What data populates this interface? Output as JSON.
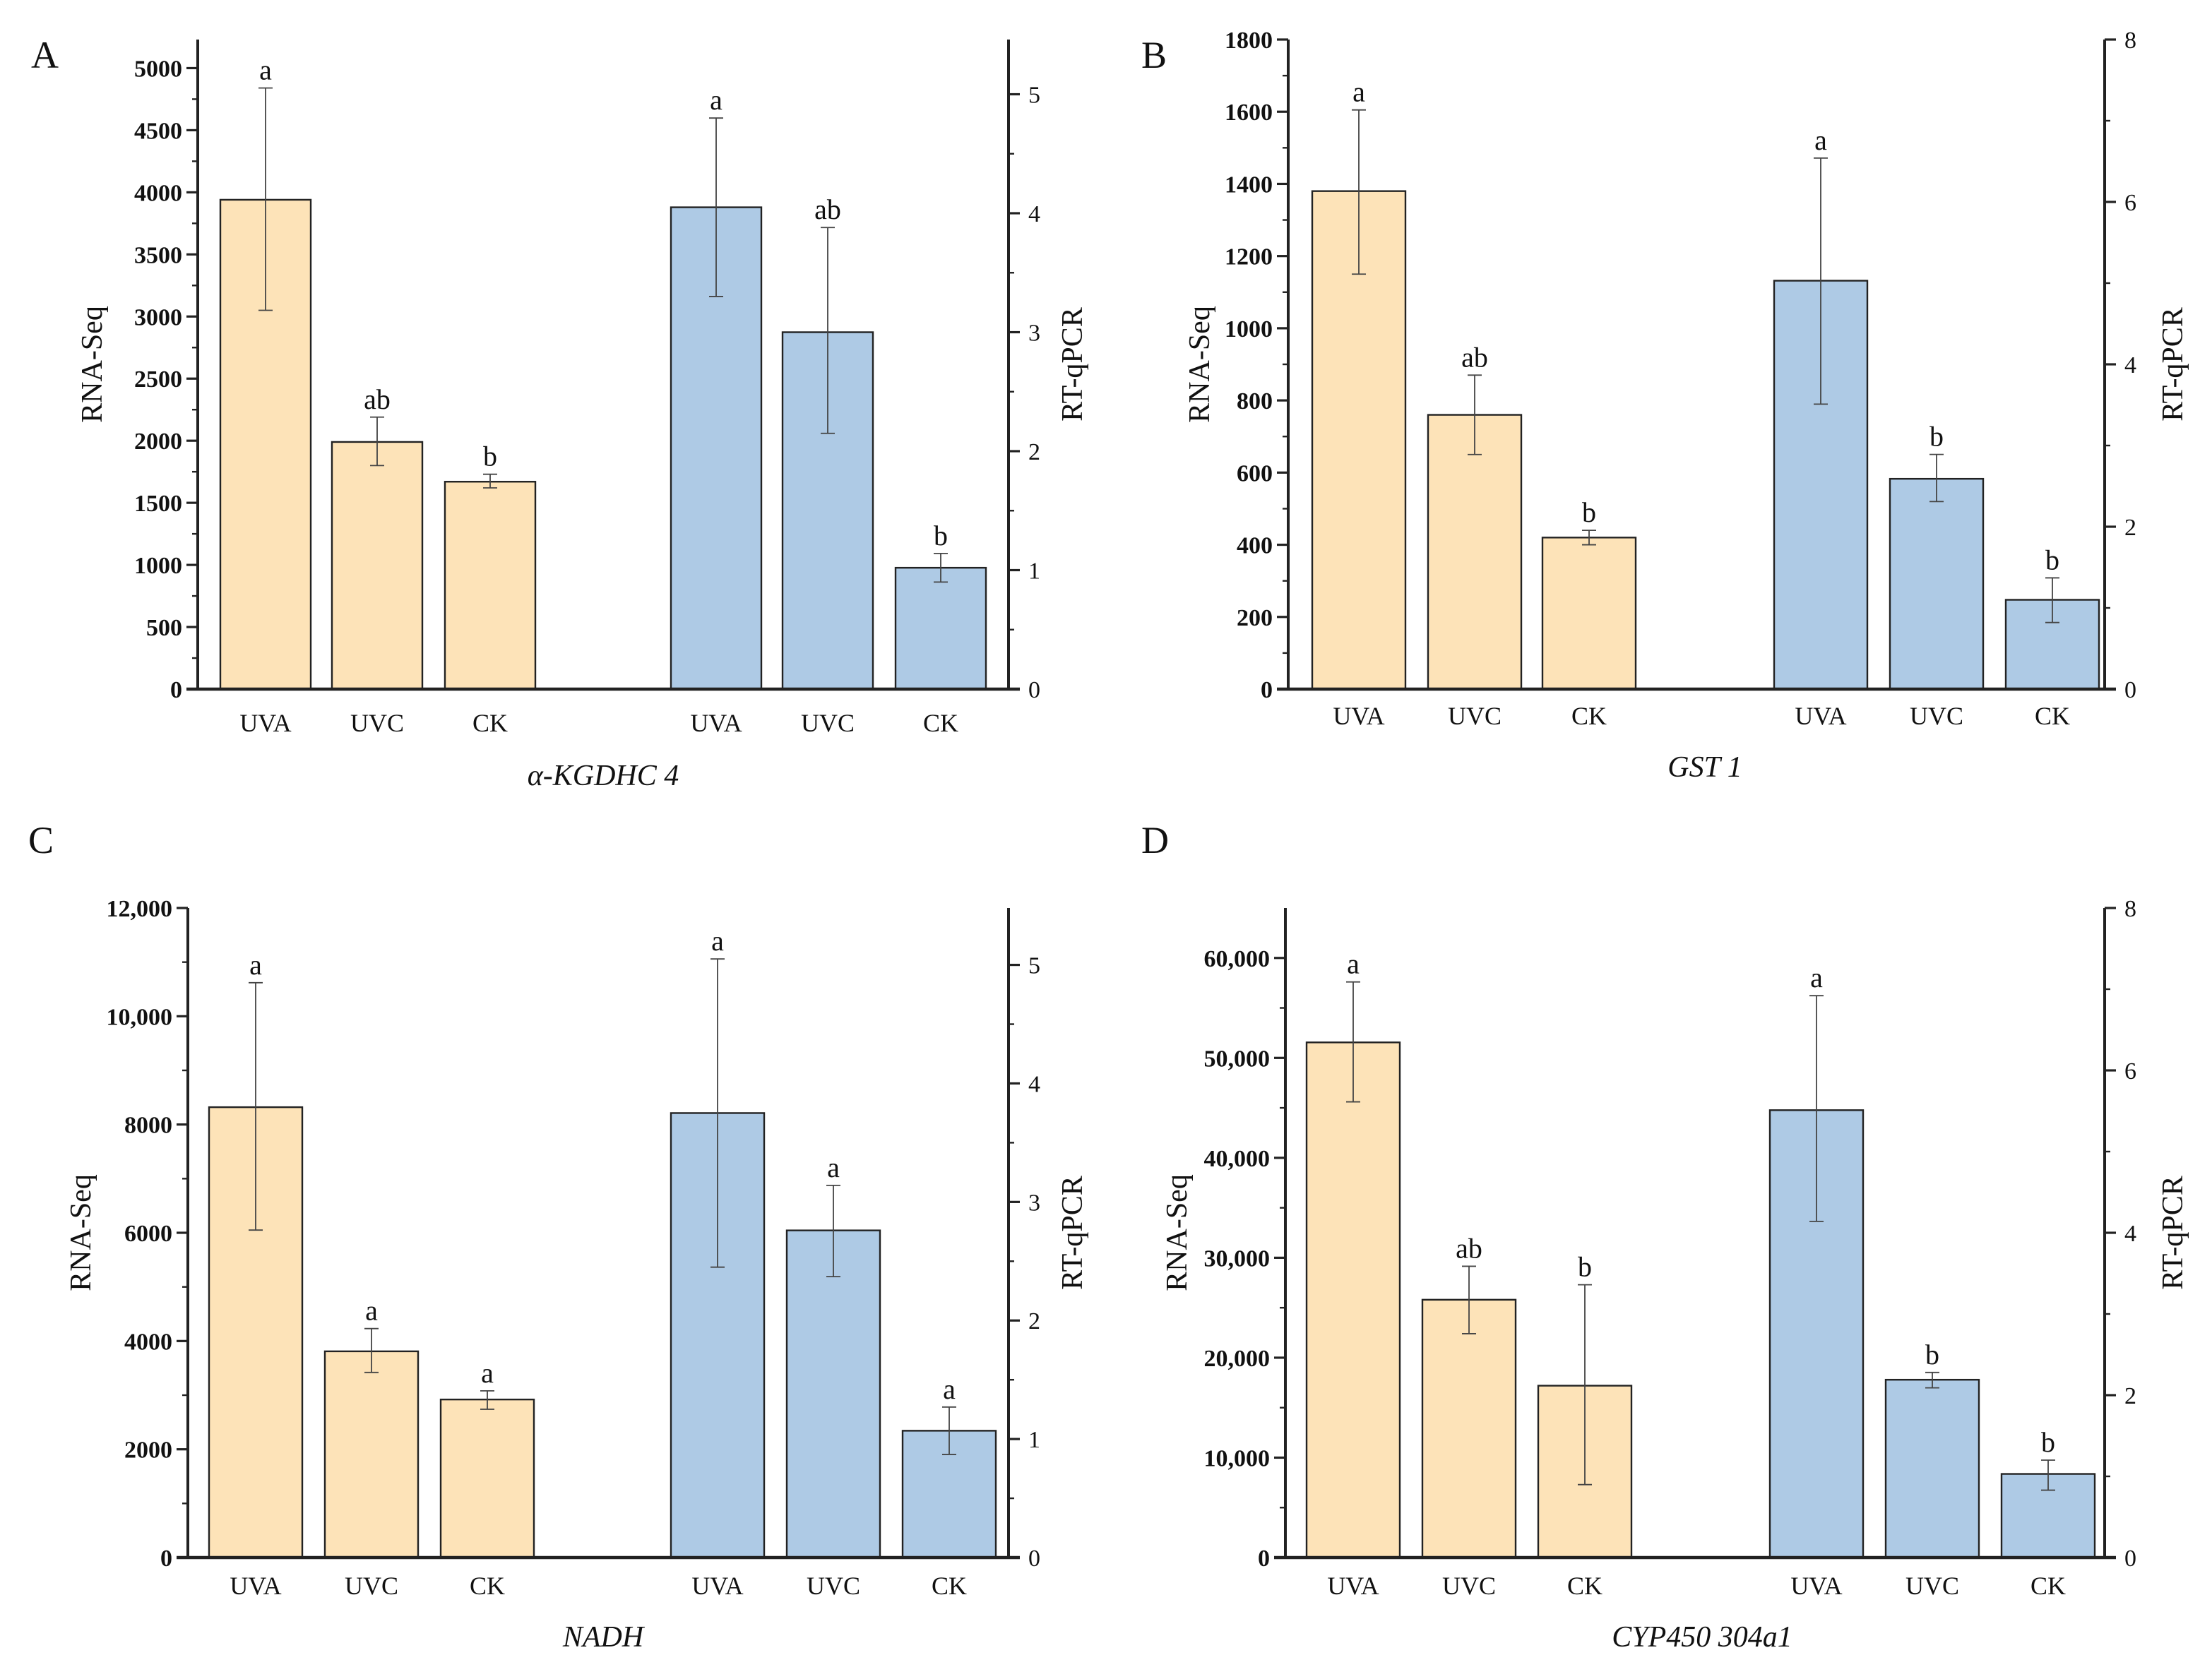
{
  "colors": {
    "rna_seq": "#fde3b8",
    "rt_qpcr": "#aecae5",
    "stroke": "#222222"
  },
  "chart_data": [
    {
      "type": "bar",
      "panel": "A",
      "gene": "α-KGDHC 4",
      "categories": [
        "UVA",
        "UVC",
        "CK"
      ],
      "ylabel_left": "RNA-Seq",
      "ylabel_right": "RT-qPCR",
      "ylim_left": [
        0,
        5230
      ],
      "ylim_right": [
        0,
        5.46
      ],
      "left_ticks": [
        0,
        500,
        1000,
        1500,
        2000,
        2500,
        3000,
        3500,
        4000,
        4500,
        5000
      ],
      "left_tick_labels": [
        "0",
        "500",
        "1000",
        "1500",
        "2000",
        "2500",
        "3000",
        "3500",
        "4000",
        "4500",
        "5000"
      ],
      "right_ticks": [
        0,
        1,
        2,
        3,
        4,
        5
      ],
      "right_tick_labels": [
        "0",
        "1",
        "2",
        "3",
        "4",
        "5"
      ],
      "series": [
        {
          "name": "RNA-Seq",
          "axis": "left",
          "values": [
            3940,
            1990,
            1670
          ],
          "err_low": [
            3050,
            1800,
            1620
          ],
          "err_high": [
            4840,
            2190,
            1730
          ],
          "letters": [
            "a",
            "ab",
            "b"
          ]
        },
        {
          "name": "RT-qPCR",
          "axis": "right",
          "values": [
            4.05,
            3.0,
            1.02
          ],
          "err_low": [
            3.3,
            2.15,
            0.9
          ],
          "err_high": [
            4.8,
            3.88,
            1.14
          ],
          "letters": [
            "a",
            "ab",
            "b"
          ]
        }
      ]
    },
    {
      "type": "bar",
      "panel": "B",
      "gene": "GST 1",
      "categories": [
        "UVA",
        "UVC",
        "CK"
      ],
      "ylabel_left": "RNA-Seq",
      "ylabel_right": "RT-qPCR",
      "ylim_left": [
        0,
        1800
      ],
      "ylim_right": [
        0,
        8
      ],
      "left_ticks": [
        0,
        200,
        400,
        600,
        800,
        1000,
        1200,
        1400,
        1600,
        1800
      ],
      "left_tick_labels": [
        "0",
        "200",
        "400",
        "600",
        "800",
        "1000",
        "1200",
        "1400",
        "1600",
        "1800"
      ],
      "right_ticks": [
        0,
        2,
        4,
        6,
        8
      ],
      "right_tick_labels": [
        "0",
        "2",
        "4",
        "6",
        "8"
      ],
      "series": [
        {
          "name": "RNA-Seq",
          "axis": "left",
          "values": [
            1380,
            760,
            420
          ],
          "err_low": [
            1150,
            650,
            400
          ],
          "err_high": [
            1605,
            870,
            440
          ],
          "letters": [
            "a",
            "ab",
            "b"
          ]
        },
        {
          "name": "RT-qPCR",
          "axis": "right",
          "values": [
            5.03,
            2.59,
            1.1
          ],
          "err_low": [
            3.51,
            2.31,
            0.82
          ],
          "err_high": [
            6.54,
            2.89,
            1.37
          ],
          "letters": [
            "a",
            "b",
            "b"
          ]
        }
      ]
    },
    {
      "type": "bar",
      "panel": "C",
      "gene": "NADH",
      "categories": [
        "UVA",
        "UVC",
        "CK"
      ],
      "ylabel_left": "RNA-Seq",
      "ylabel_right": "RT-qPCR",
      "ylim_left": [
        0,
        12000
      ],
      "ylim_right": [
        0,
        5.48
      ],
      "left_ticks": [
        0,
        2000,
        4000,
        6000,
        8000,
        10000,
        12000
      ],
      "left_tick_labels": [
        "0",
        "2000",
        "4000",
        "6000",
        "8000",
        "10,000",
        "12,000"
      ],
      "right_ticks": [
        0,
        1,
        2,
        3,
        4,
        5
      ],
      "right_tick_labels": [
        "0",
        "1",
        "2",
        "3",
        "4",
        "5"
      ],
      "series": [
        {
          "name": "RNA-Seq",
          "axis": "left",
          "values": [
            8320,
            3810,
            2920
          ],
          "err_low": [
            6050,
            3420,
            2740
          ],
          "err_high": [
            10620,
            4230,
            3080
          ],
          "letters": [
            "a",
            "a",
            "a"
          ]
        },
        {
          "name": "RT-qPCR",
          "axis": "right",
          "values": [
            3.75,
            2.76,
            1.07
          ],
          "err_low": [
            2.45,
            2.37,
            0.87
          ],
          "err_high": [
            5.05,
            3.14,
            1.27
          ],
          "letters": [
            "a",
            "a",
            "a"
          ]
        }
      ]
    },
    {
      "type": "bar",
      "panel": "D",
      "gene": "CYP450 304a1",
      "categories": [
        "UVA",
        "UVC",
        "CK"
      ],
      "ylabel_left": "RNA-Seq",
      "ylabel_right": "RT-qPCR",
      "ylim_left": [
        0,
        65000
      ],
      "ylim_right": [
        0,
        8
      ],
      "left_ticks": [
        0,
        10000,
        20000,
        30000,
        40000,
        50000,
        60000
      ],
      "left_tick_labels": [
        "0",
        "10,000",
        "20,000",
        "30,000",
        "40,000",
        "50,000",
        "60,000"
      ],
      "right_ticks": [
        0,
        2,
        4,
        6,
        8
      ],
      "right_tick_labels": [
        "0",
        "2",
        "4",
        "6",
        "8"
      ],
      "series": [
        {
          "name": "RNA-Seq",
          "axis": "left",
          "values": [
            51550,
            25800,
            17200
          ],
          "err_low": [
            45600,
            22400,
            7300
          ],
          "err_high": [
            57600,
            29150,
            27300
          ],
          "letters": [
            "a",
            "ab",
            "b"
          ]
        },
        {
          "name": "RT-qPCR",
          "axis": "right",
          "values": [
            5.51,
            2.19,
            1.03
          ],
          "err_low": [
            4.14,
            2.09,
            0.83
          ],
          "err_high": [
            6.92,
            2.28,
            1.2
          ],
          "letters": [
            "a",
            "b",
            "b"
          ]
        }
      ]
    }
  ]
}
